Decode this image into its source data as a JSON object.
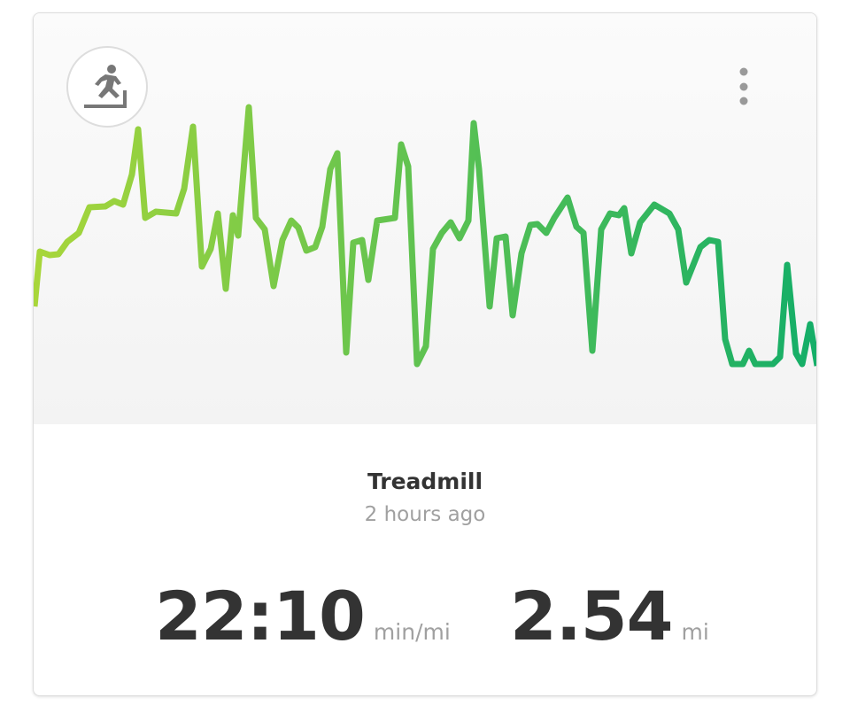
{
  "card": {
    "title": "Treadmill",
    "time": "2 hours ago",
    "stats": [
      {
        "value": "22:10",
        "unit": "min/mi"
      },
      {
        "value": "2.54",
        "unit": "mi"
      }
    ]
  }
}
